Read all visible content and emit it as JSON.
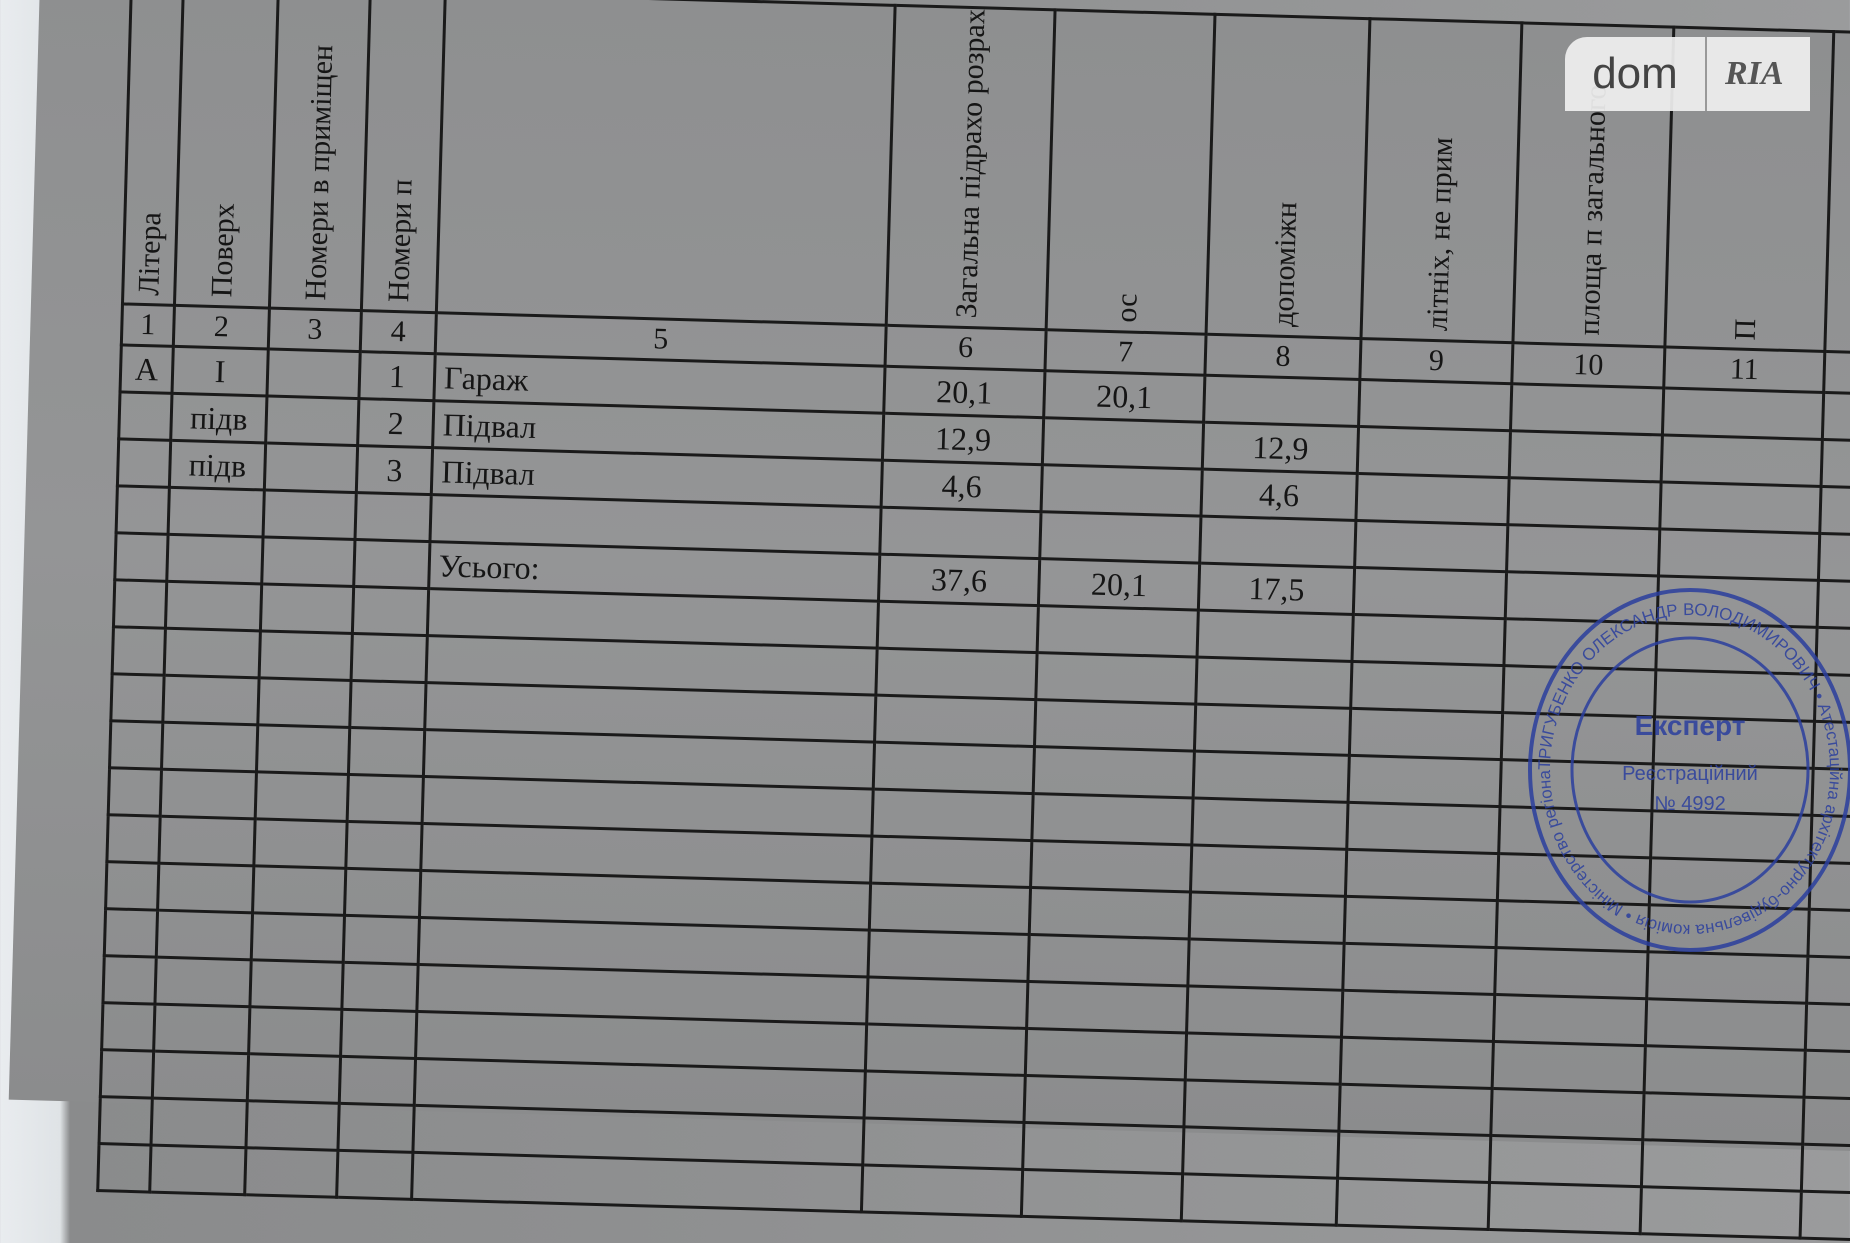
{
  "headers": [
    "Літера",
    "Поверх",
    "Номери в приміщен",
    "Номери п",
    "",
    "Загальна підрахо розрах",
    "ос",
    "допоміжн",
    "літніх, не прим",
    "площа п загального",
    "П"
  ],
  "column_numbers": [
    "1",
    "2",
    "3",
    "4",
    "5",
    "6",
    "7",
    "8",
    "9",
    "10",
    "11"
  ],
  "rows": [
    [
      "А",
      "I",
      "",
      "1",
      "Гараж",
      "20,1",
      "20,1",
      "",
      "",
      "",
      ""
    ],
    [
      "",
      "підв",
      "",
      "2",
      "Підвал",
      "12,9",
      "",
      "12,9",
      "",
      "",
      ""
    ],
    [
      "",
      "підв",
      "",
      "3",
      "Підвал",
      "4,6",
      "",
      "4,6",
      "",
      "",
      ""
    ],
    [
      "",
      "",
      "",
      "",
      "",
      "",
      "",
      "",
      "",
      "",
      ""
    ],
    [
      "",
      "",
      "",
      "",
      "Усього:",
      "37,6",
      "20,1",
      "17,5",
      "",
      "",
      ""
    ]
  ],
  "empty_rows": 13,
  "watermark": {
    "dom": "dom",
    "ria": "RIA"
  },
  "stamp": {
    "color": "#2b3f9e",
    "title": "Експерт",
    "line2": "Реєстраційний",
    "line3": "№ 4992",
    "ring": "ТРИГУБЕНКО ОЛЕКСАНДР ВОЛОДИМИРОВИЧ • Атестаційна архітектурно-будівельна комісія • Міністерство регіонального розвитку, будівництва та житлово-комунального господарства України • УКРАЇНА •"
  }
}
